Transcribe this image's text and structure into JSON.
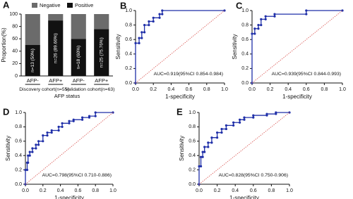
{
  "chart_data": [
    {
      "type": "bar",
      "panel_label": "A",
      "y_label": "Proportion(%)",
      "x_label": "AFP status",
      "categories": [
        "AFP-",
        "AFP+",
        "AFP-",
        "AFP+"
      ],
      "groups": [
        "Discovery cohort(n=55)",
        "Validation cohort(n=63)"
      ],
      "series": [
        {
          "name": "Negative",
          "color": "#6b6b6b",
          "values": [
            50,
            10.34,
            40,
            24.24
          ]
        },
        {
          "name": "Positive",
          "color": "#111111",
          "values": [
            50,
            89.66,
            60,
            75.76
          ],
          "value_labels": [
            "n=13 (50%)",
            "n=26 (89.66%)",
            "n=18 (60%)",
            "n=25 (75.76%)"
          ]
        }
      ],
      "ylim": [
        0,
        100
      ],
      "yticks": [
        0,
        20,
        40,
        60,
        80,
        100
      ]
    },
    {
      "type": "line",
      "panel_label": "B",
      "x_label": "1-specificity",
      "y_label": "Sensitivity",
      "annotation": "AUC=0.919(95%CI 0.854-0.984)",
      "series": [
        {
          "color": "#1f2fa8",
          "marker": true,
          "x": [
            0,
            0,
            0.04,
            0.04,
            0.07,
            0.07,
            0.1,
            0.1,
            0.15,
            0.15,
            0.2,
            0.2,
            0.27,
            0.27,
            0.3,
            0.3,
            1
          ],
          "values": [
            0,
            0.55,
            0.55,
            0.62,
            0.62,
            0.7,
            0.7,
            0.8,
            0.8,
            0.85,
            0.85,
            0.9,
            0.9,
            0.95,
            0.95,
            1,
            1
          ]
        },
        {
          "color": "#d9534f",
          "dash": true,
          "x": [
            0,
            1
          ],
          "values": [
            0,
            1
          ]
        }
      ],
      "xlim": [
        0,
        1
      ],
      "ylim": [
        0,
        1
      ],
      "xticks": [
        {
          "value": 0,
          "label": "0.0"
        },
        0.2,
        0.4,
        0.6,
        0.8,
        {
          "value": 1,
          "label": "1.0"
        }
      ],
      "yticks": [
        {
          "value": 0,
          "label": "0.0"
        },
        0.2,
        0.4,
        0.6,
        0.8,
        {
          "value": 1,
          "label": "1.0"
        }
      ]
    },
    {
      "type": "line",
      "panel_label": "C",
      "x_label": "1-specificity",
      "y_label": "Sensitivity",
      "annotation": "AUC=0.939(95%CI 0.844-0.993)",
      "series": [
        {
          "color": "#1f2fa8",
          "marker": true,
          "x": [
            0,
            0,
            0.03,
            0.03,
            0.07,
            0.07,
            0.1,
            0.1,
            0.15,
            0.15,
            0.25,
            0.25,
            0.6,
            0.6,
            1
          ],
          "values": [
            0,
            0.68,
            0.68,
            0.75,
            0.75,
            0.8,
            0.8,
            0.88,
            0.88,
            0.92,
            0.92,
            0.95,
            0.95,
            1,
            1
          ]
        },
        {
          "color": "#d9534f",
          "dash": true,
          "x": [
            0,
            1
          ],
          "values": [
            0,
            1
          ]
        }
      ],
      "xlim": [
        0,
        1
      ],
      "ylim": [
        0,
        1
      ],
      "xticks": [
        {
          "value": 0,
          "label": "0.0"
        },
        0.2,
        0.4,
        0.6,
        0.8,
        {
          "value": 1,
          "label": "1.0"
        }
      ],
      "yticks": [
        {
          "value": 0,
          "label": "0.0"
        },
        0.2,
        0.4,
        0.6,
        0.8,
        {
          "value": 1,
          "label": "1.0"
        }
      ]
    },
    {
      "type": "line",
      "panel_label": "D",
      "x_label": "1-specificity",
      "y_label": "Sensitivity",
      "annotation": "AUC=0.798(95%CI 0.710-0.886)",
      "series": [
        {
          "color": "#1f2fa8",
          "marker": true,
          "x": [
            0,
            0,
            0.02,
            0.02,
            0.03,
            0.03,
            0.05,
            0.05,
            0.08,
            0.08,
            0.12,
            0.12,
            0.15,
            0.15,
            0.2,
            0.2,
            0.25,
            0.25,
            0.3,
            0.3,
            0.38,
            0.38,
            0.42,
            0.42,
            0.5,
            0.5,
            0.55,
            0.55,
            0.65,
            0.65,
            0.73,
            0.73,
            0.8,
            0.8,
            1
          ],
          "values": [
            0,
            0.2,
            0.2,
            0.3,
            0.3,
            0.4,
            0.4,
            0.45,
            0.45,
            0.5,
            0.5,
            0.55,
            0.55,
            0.6,
            0.6,
            0.68,
            0.68,
            0.72,
            0.72,
            0.75,
            0.75,
            0.8,
            0.8,
            0.85,
            0.85,
            0.88,
            0.88,
            0.9,
            0.9,
            0.93,
            0.93,
            0.95,
            0.95,
            1,
            1
          ]
        },
        {
          "color": "#d9534f",
          "dash": true,
          "x": [
            0,
            1
          ],
          "values": [
            0,
            1
          ]
        }
      ],
      "xlim": [
        0,
        1
      ],
      "ylim": [
        0,
        1
      ],
      "xticks": [
        {
          "value": 0,
          "label": "0.0"
        },
        0.2,
        0.4,
        0.6,
        0.8,
        {
          "value": 1,
          "label": "1.0"
        }
      ],
      "yticks": [
        {
          "value": 0,
          "label": "0.0"
        },
        0.2,
        0.4,
        0.6,
        0.8,
        {
          "value": 1,
          "label": "1.0"
        }
      ]
    },
    {
      "type": "line",
      "panel_label": "E",
      "x_label": "1-specificity",
      "y_label": "Sensitivity",
      "annotation": "AUC=0.828(95%CI 0.750-0.906)",
      "series": [
        {
          "color": "#1f2fa8",
          "marker": true,
          "x": [
            0,
            0,
            0.02,
            0.02,
            0.04,
            0.04,
            0.06,
            0.06,
            0.1,
            0.1,
            0.14,
            0.14,
            0.2,
            0.2,
            0.25,
            0.25,
            0.3,
            0.3,
            0.38,
            0.38,
            0.45,
            0.45,
            0.5,
            0.5,
            0.6,
            0.6,
            0.75,
            0.75,
            0.85,
            0.85,
            1
          ],
          "values": [
            0,
            0.25,
            0.25,
            0.38,
            0.38,
            0.45,
            0.45,
            0.52,
            0.52,
            0.58,
            0.58,
            0.65,
            0.65,
            0.72,
            0.72,
            0.77,
            0.77,
            0.82,
            0.82,
            0.86,
            0.86,
            0.9,
            0.9,
            0.93,
            0.93,
            0.96,
            0.96,
            0.98,
            0.98,
            1,
            1
          ]
        },
        {
          "color": "#d9534f",
          "dash": true,
          "x": [
            0,
            1
          ],
          "values": [
            0,
            1
          ]
        }
      ],
      "xlim": [
        0,
        1
      ],
      "ylim": [
        0,
        1
      ],
      "xticks": [
        {
          "value": 0,
          "label": "0.0"
        },
        0.2,
        0.4,
        0.6,
        0.8,
        {
          "value": 1,
          "label": "1.0"
        }
      ],
      "yticks": [
        {
          "value": 0,
          "label": "0.0"
        },
        0.2,
        0.4,
        0.6,
        0.8,
        {
          "value": 1,
          "label": "1.0"
        }
      ]
    }
  ]
}
